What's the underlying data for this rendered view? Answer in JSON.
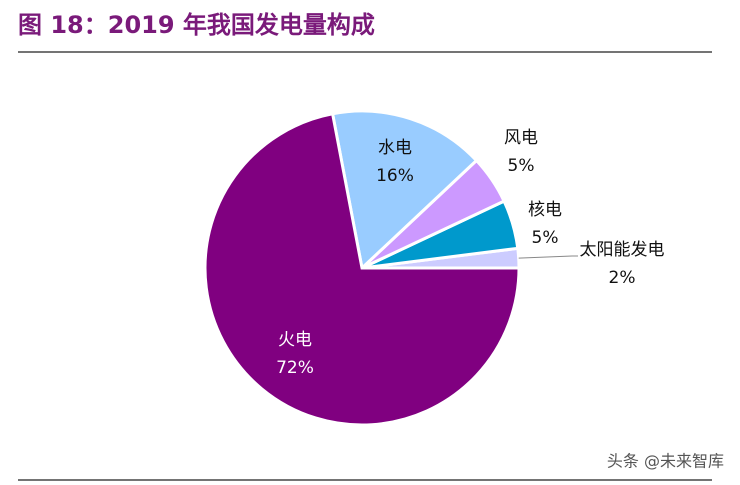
{
  "chart_data": {
    "type": "pie",
    "title": "图 18：2019 年我国发电量构成",
    "categories": [
      "太阳能发电",
      "核电",
      "风电",
      "水电",
      "火电"
    ],
    "values": [
      2,
      5,
      5,
      16,
      72
    ],
    "value_labels": [
      "2%",
      "5%",
      "5%",
      "16%",
      "72%"
    ],
    "colors": [
      "#ccccff",
      "#0099cc",
      "#cc99ff",
      "#99ccff",
      "#800080"
    ]
  },
  "watermark": "头条 @未来智库"
}
